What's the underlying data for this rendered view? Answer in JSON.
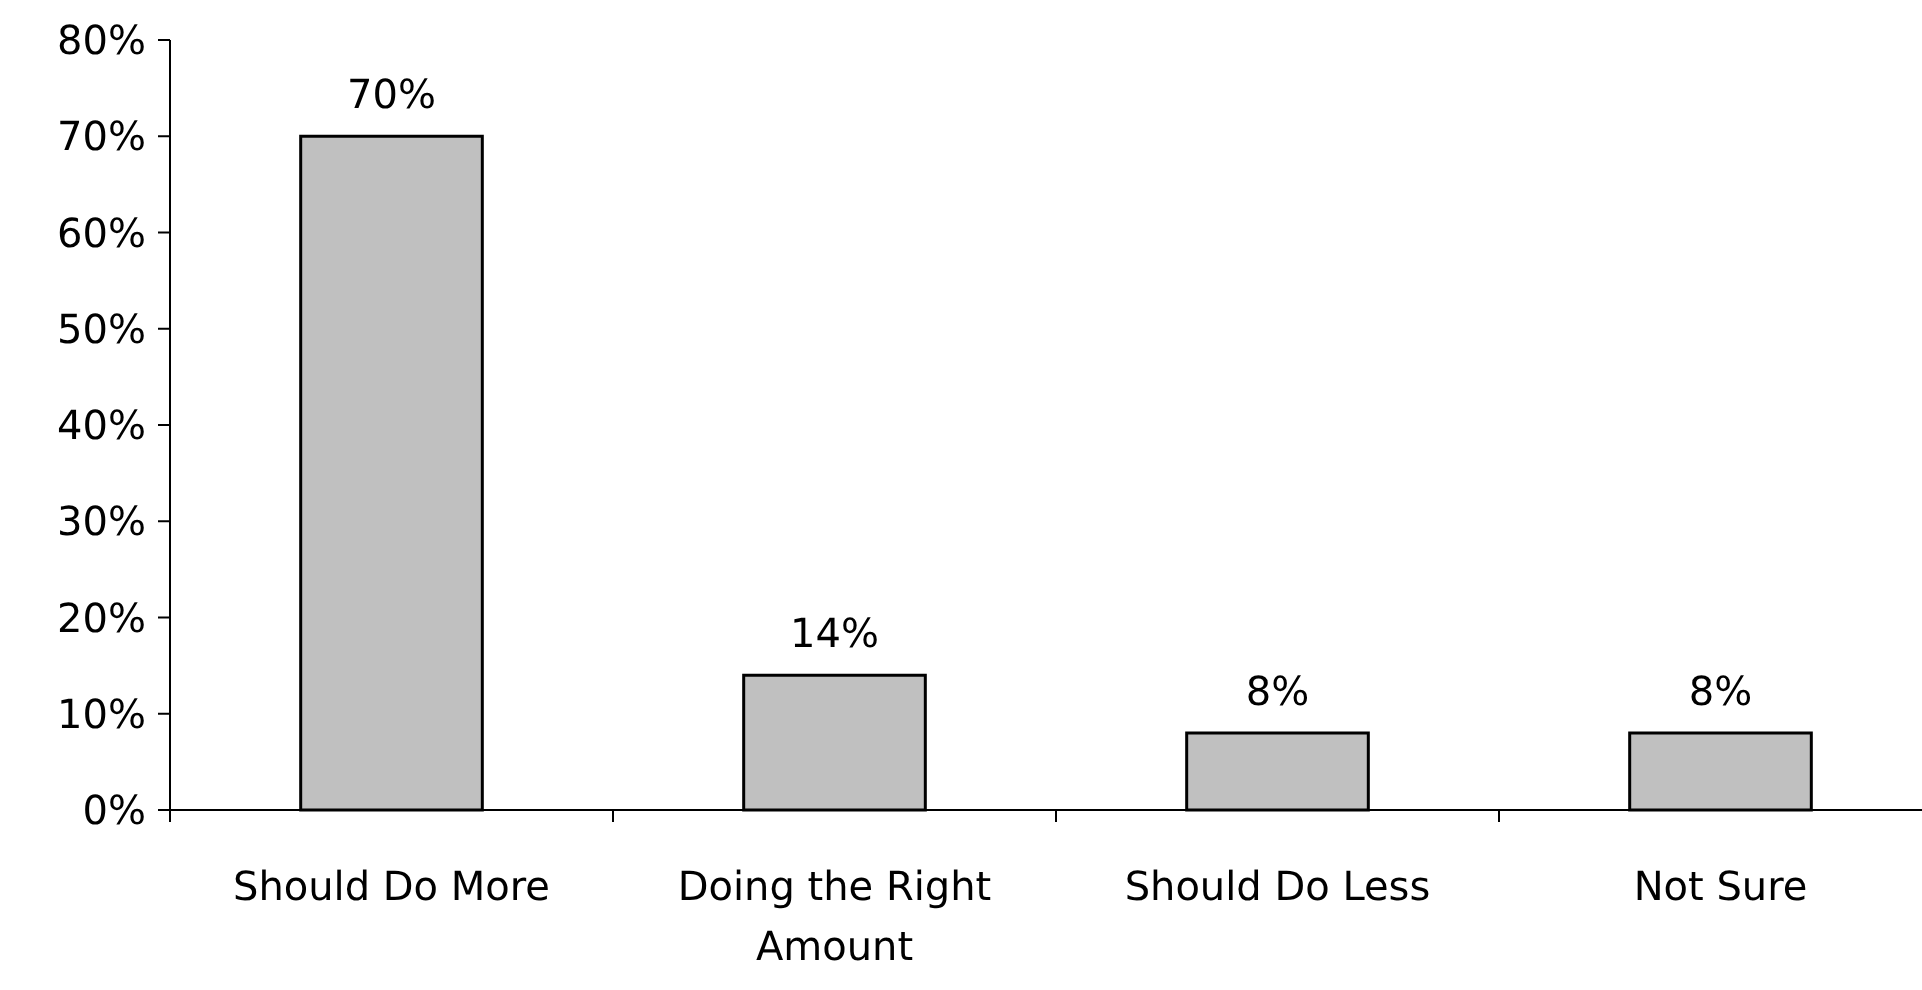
{
  "chart_data": {
    "type": "bar",
    "categories": [
      "Should Do More",
      "Doing the Right Amount",
      "Should Do Less",
      "Not Sure"
    ],
    "values": [
      70,
      14,
      8,
      8
    ],
    "color": "#c0c0c0",
    "value_labels": [
      "70%",
      "14%",
      "8%",
      "8%"
    ],
    "ylim": [
      0,
      80
    ],
    "yticks": [
      {
        "value": 0,
        "label": "0%"
      },
      {
        "value": 10,
        "label": "10%"
      },
      {
        "value": 20,
        "label": "20%"
      },
      {
        "value": 30,
        "label": "30%"
      },
      {
        "value": 40,
        "label": "40%"
      },
      {
        "value": 50,
        "label": "50%"
      },
      {
        "value": 60,
        "label": "60%"
      },
      {
        "value": 70,
        "label": "70%"
      },
      {
        "value": 80,
        "label": "80%"
      }
    ],
    "grid": false
  }
}
